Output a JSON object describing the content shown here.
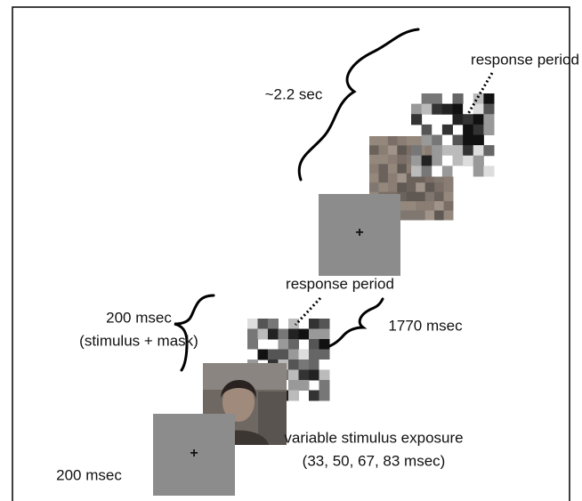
{
  "trial_long": {
    "duration": "~2.2 sec",
    "response_label": "response period",
    "fixation": "+"
  },
  "trial_short": {
    "fixation": "+",
    "fixation_duration": "200 msec",
    "exposure": [
      "variable stimulus exposure",
      "(33, 50, 67, 83 msec)"
    ],
    "stimulus_mask_duration": [
      "200 msec",
      "(stimulus + mask)"
    ],
    "response_label": "response period",
    "response_duration": "1770 msec"
  }
}
